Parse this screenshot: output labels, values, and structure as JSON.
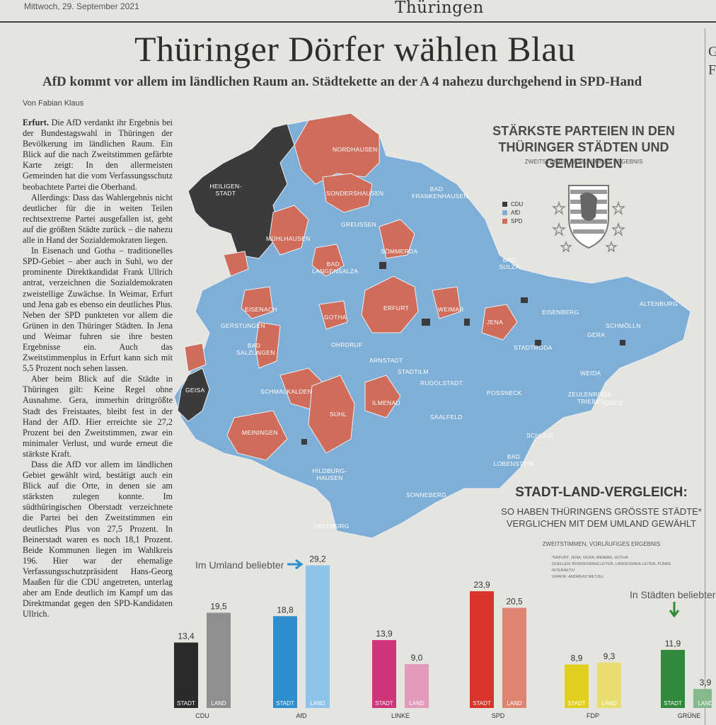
{
  "page": {
    "dateline": "Mittwoch, 29. September 2021",
    "section": "Thüringen",
    "headline": "Thüringer Dörfer wählen Blau",
    "subheadline": "AfD kommt vor allem im ländlichen Raum an. Städtekette an der A 4 nahezu durchgehend in SPD-Hand",
    "byline": "Von Fabian Klaus"
  },
  "article": {
    "location": "Erfurt.",
    "paragraphs": [
      "Die AfD verdankt ihr Ergebnis bei der Bundestagswahl in Thüringen der Bevölkerung im ländlichen Raum. Ein Blick auf die nach Zweitstimmen gefärbte Karte zeigt: In den allermeisten Gemeinden hat die vom Verfassungsschutz beobachtete Partei die Oberhand.",
      "Allerdings: Dass das Wahlergebnis nicht deutlicher für die in weiten Teilen rechtsextreme Partei ausgefallen ist, geht auf die größten Städte zurück – die nahezu alle in Hand der Sozialdemokraten liegen.",
      "In Eisenach und Gotha – traditionelles SPD-Gebiet – aber auch in Suhl, wo der prominente Direktkandidat Frank Ullrich antrat, verzeichnen die Sozialdemokraten zweistellige Zuwächse. In Weimar, Erfurt und Jena gab es ebenso ein deutliches Plus. Neben der SPD punkteten vor allem die Grünen in den Thüringer Städten. In Jena und Weimar fuhren sie ihre besten Ergebnisse ein. Auch das Zweitstimmenplus in Erfurt kann sich mit 5,5 Prozent noch sehen lassen.",
      "Aber beim Blick auf die Städte in Thüringen gilt: Keine Regel ohne Ausnahme. Gera, immerhin drittgrößte Stadt des Freistaates, bleibt fest in der Hand der AfD. Hier erreichte sie 27,2 Prozent bei den Zweitstimmen, zwar ein minimaler Verlust, und wurde erneut die stärkste Kraft.",
      "Dass die AfD vor allem im ländlichen Gebiet gewählt wird, bestätigt auch ein Blick auf die Orte, in denen sie am stärksten zulegen konnte. Im südthüringischen Oberstadt verzeichnete die Partei bei den Zweitstimmen ein deutliches Plus von 27,5 Prozent. In Beinerstadt waren es noch 18,1 Prozent. Beide Kommunen liegen im Wahlkreis 196. Hier war der ehemalige Verfassungsschutzpräsident Hans-Georg Maaßen für die CDU angetreten, unterlag aber am Ende deutlich im Kampf um das Direktmandat gegen den SPD-Kandidaten Ullrich."
    ]
  },
  "map": {
    "title_line1": "STÄRKSTE PARTEIEN IN DEN",
    "title_line2": "THÜRINGER STÄDTEN UND GEMEINDEN",
    "subtitle": "ZWEITSTIMMEN, VORLÄUFIGES ERGEBNIS",
    "legend": [
      {
        "label": "CDU",
        "color": "#3b3b3b"
      },
      {
        "label": "AfD",
        "color": "#7faed6"
      },
      {
        "label": "SPD",
        "color": "#cf6c5a"
      }
    ],
    "places": [
      "NORDHAUSEN",
      "HEILIGEN-STADT",
      "SONDERSHAUSEN",
      "BAD FRANKENHAUSEN",
      "GREUSSEN",
      "MÜHLHAUSEN",
      "SÖMMERDA",
      "BAD LANGENSALZA",
      "BAD SULZA",
      "EISENACH",
      "GOTHA",
      "ERFURT",
      "WEIMAR",
      "JENA",
      "EISENBERG",
      "ALTENBURG",
      "SCHMÖLLN",
      "GERA",
      "GERSTUNGEN",
      "BAD SALZUNGEN",
      "OHRDRUF",
      "ARNSTADT",
      "STADTILM",
      "STADTRODA",
      "WEIDA",
      "GEISA",
      "SCHMALKALDEN",
      "RUDOLSTADT",
      "POSSNECK",
      "ZEULENRODA-TRIEBES",
      "GREIZ",
      "SUHL",
      "ILMENAU",
      "SAALFELD",
      "MEININGEN",
      "SCHLEIZ",
      "BAD LOBENSTEIN",
      "HILDBURG-HAUSEN",
      "SONNEBERG",
      "HELDBURG"
    ]
  },
  "comparison": {
    "title": "STADT-LAND-VERGLEICH:",
    "subtitle_line1": "SO HABEN THÜRINGENS GRÖSSTE STÄDTE*",
    "subtitle_line2": "VERGLICHEN MIT DEM UMLAND GEWÄHLT",
    "note": "ZWEITSTIMMEN, VORLÄUFIGES ERGEBNIS",
    "footnote1": "*ERFURT, JENA, GERA, WEIMAR, GOTHA",
    "footnote2": "QUELLEN: BUNDESWAHLLEITER, LANDESWAHLLEITER, FUNKE INTERAKTIV",
    "footnote3": "GRAFIK: ANDREAS WETZEL",
    "annotation_land": "Im Umland beliebter",
    "annotation_stadt": "In Städten beliebter"
  },
  "chart_data": {
    "type": "bar",
    "categories": [
      "CDU",
      "AfD",
      "LINKE",
      "SPD",
      "FDP",
      "GRÜNE"
    ],
    "series": [
      {
        "name": "STADT",
        "values": [
          13.4,
          18.8,
          13.9,
          23.9,
          8.9,
          11.9
        ]
      },
      {
        "name": "LAND",
        "values": [
          19.5,
          29.2,
          9.0,
          20.5,
          9.3,
          3.9
        ]
      }
    ],
    "data_labels": {
      "STADT": [
        "13,4",
        "18,8",
        "13,9",
        "23,9",
        "8,9",
        "11,9"
      ],
      "LAND": [
        "19,5",
        "29,2",
        "9,0",
        "20,5",
        "9,3",
        "3,9"
      ]
    },
    "colors": {
      "STADT": [
        "#2b2b2b",
        "#2e8fcf",
        "#d0357a",
        "#d8342c",
        "#e2cf1d",
        "#2f8a3c"
      ],
      "LAND": [
        "#8f8f8f",
        "#8ec3ea",
        "#e39bbd",
        "#e08472",
        "#e8de70",
        "#86b98d"
      ]
    },
    "bar_labels": {
      "stadt": "STADT",
      "land": "LAND"
    }
  }
}
